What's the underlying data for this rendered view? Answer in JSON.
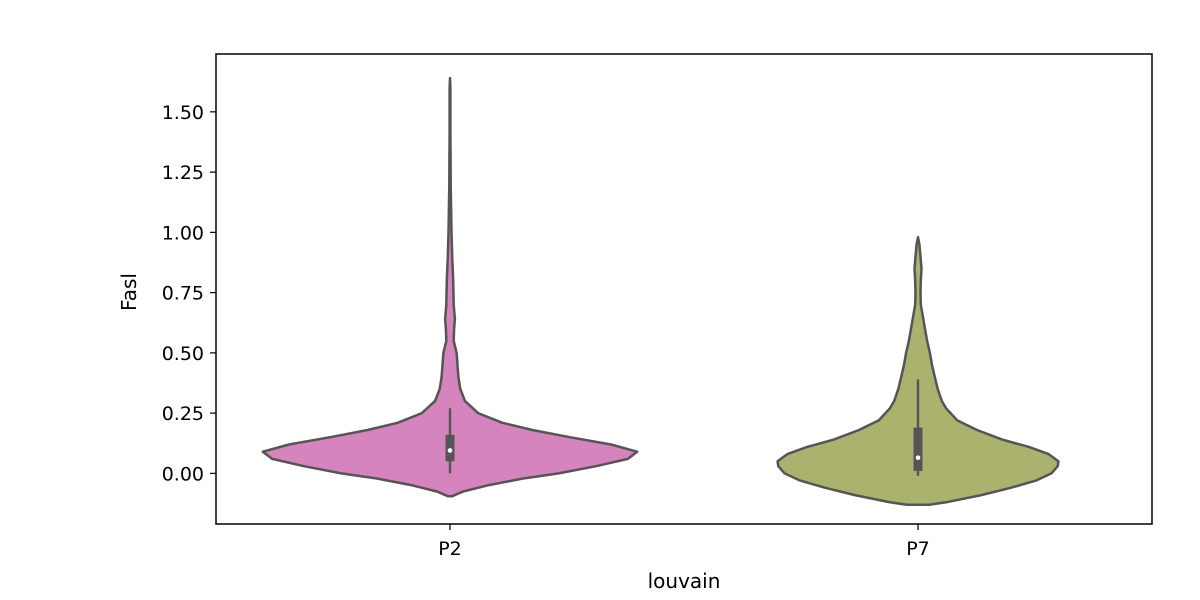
{
  "chart_data": {
    "type": "violin",
    "title": "",
    "xlabel": "louvain",
    "ylabel": "Fasl",
    "ylim": [
      -0.21,
      1.74
    ],
    "yticks": [
      0.0,
      0.25,
      0.5,
      0.75,
      1.0,
      1.25,
      1.5
    ],
    "ytick_labels": [
      "0.00",
      "0.25",
      "0.50",
      "0.75",
      "1.00",
      "1.25",
      "1.50"
    ],
    "grid": false,
    "categories": [
      "P2",
      "P7"
    ],
    "series": [
      {
        "category": "P2",
        "color": "#d684bd",
        "min": 0.0,
        "q1": 0.05,
        "median": 0.095,
        "q3": 0.16,
        "max": 0.27,
        "kde_extent": [
          -0.095,
          1.64
        ],
        "kde_max_halfwidth": 0.8,
        "density_profile": [
          [
            -0.095,
            0.01
          ],
          [
            -0.075,
            0.07
          ],
          [
            -0.05,
            0.2
          ],
          [
            -0.02,
            0.4
          ],
          [
            0.0,
            0.58
          ],
          [
            0.03,
            0.78
          ],
          [
            0.06,
            0.95
          ],
          [
            0.09,
            1.0
          ],
          [
            0.12,
            0.86
          ],
          [
            0.15,
            0.64
          ],
          [
            0.18,
            0.44
          ],
          [
            0.21,
            0.28
          ],
          [
            0.25,
            0.15
          ],
          [
            0.3,
            0.08
          ],
          [
            0.35,
            0.055
          ],
          [
            0.4,
            0.045
          ],
          [
            0.5,
            0.035
          ],
          [
            0.55,
            0.02
          ],
          [
            0.6,
            0.022
          ],
          [
            0.64,
            0.026
          ],
          [
            0.7,
            0.02
          ],
          [
            0.8,
            0.017
          ],
          [
            0.9,
            0.012
          ],
          [
            1.0,
            0.008
          ],
          [
            1.1,
            0.006
          ],
          [
            1.2,
            0.004
          ],
          [
            1.3,
            0.003
          ],
          [
            1.4,
            0.002
          ],
          [
            1.5,
            0.002
          ],
          [
            1.6,
            0.002
          ],
          [
            1.64,
            0.0
          ]
        ]
      },
      {
        "category": "P7",
        "color": "#aab26e",
        "min": -0.01,
        "q1": 0.01,
        "median": 0.065,
        "q3": 0.19,
        "max": 0.39,
        "kde_extent": [
          -0.13,
          0.98
        ],
        "kde_max_halfwidth": 0.6,
        "density_profile": [
          [
            -0.13,
            0.08
          ],
          [
            -0.12,
            0.2
          ],
          [
            -0.09,
            0.45
          ],
          [
            -0.06,
            0.66
          ],
          [
            -0.03,
            0.84
          ],
          [
            0.0,
            0.95
          ],
          [
            0.03,
            0.995
          ],
          [
            0.05,
            1.0
          ],
          [
            0.08,
            0.93
          ],
          [
            0.11,
            0.79
          ],
          [
            0.14,
            0.6
          ],
          [
            0.18,
            0.42
          ],
          [
            0.22,
            0.28
          ],
          [
            0.27,
            0.2
          ],
          [
            0.3,
            0.17
          ],
          [
            0.35,
            0.14
          ],
          [
            0.4,
            0.12
          ],
          [
            0.45,
            0.1
          ],
          [
            0.5,
            0.085
          ],
          [
            0.55,
            0.065
          ],
          [
            0.6,
            0.05
          ],
          [
            0.65,
            0.035
          ],
          [
            0.7,
            0.02
          ],
          [
            0.75,
            0.018
          ],
          [
            0.8,
            0.02
          ],
          [
            0.85,
            0.025
          ],
          [
            0.9,
            0.018
          ],
          [
            0.95,
            0.01
          ],
          [
            0.98,
            0.0
          ]
        ]
      }
    ],
    "colors": {
      "outline": "#555555",
      "box": "#555555",
      "median_dot": "#ffffff",
      "axes": "#000000"
    }
  }
}
